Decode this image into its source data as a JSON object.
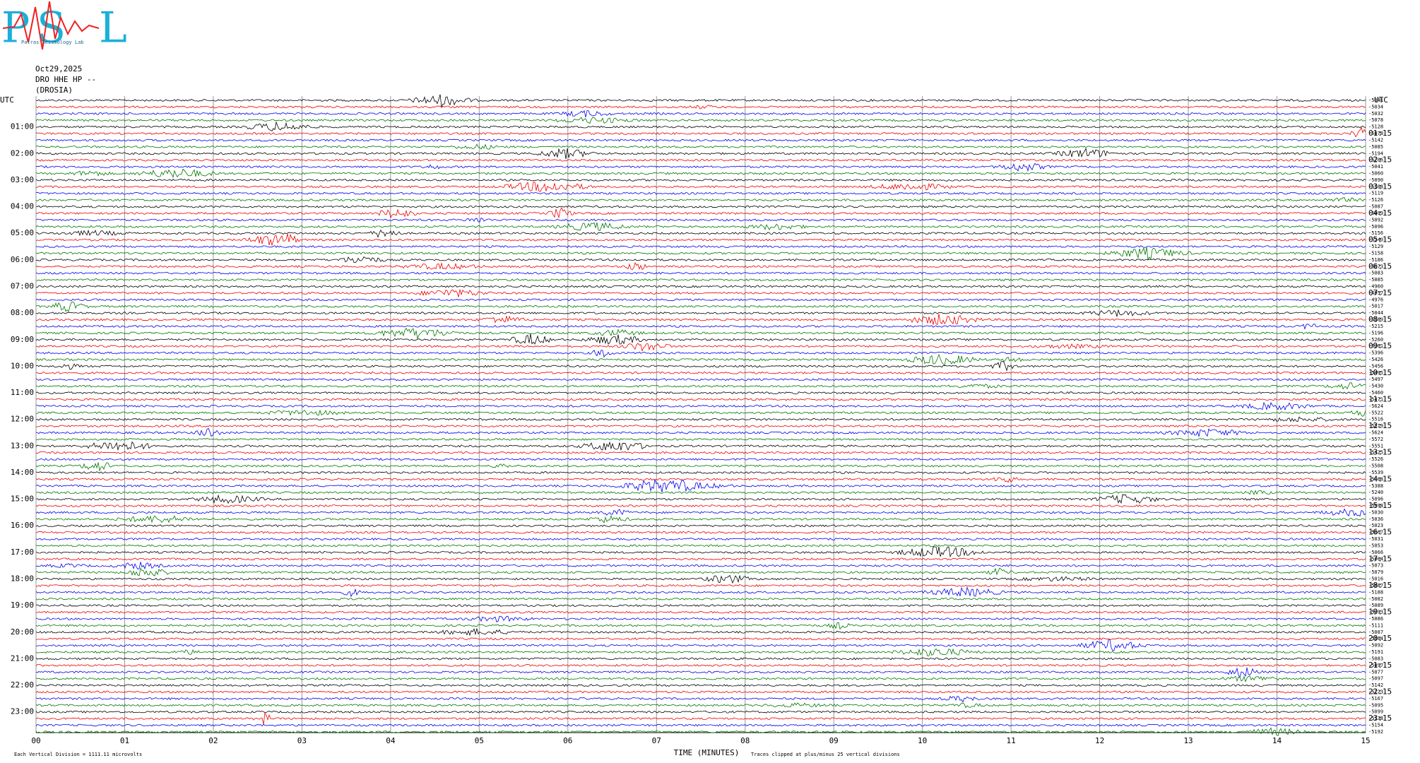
{
  "logo": {
    "letters": [
      "P",
      "S",
      "L"
    ],
    "subtitle": "Patras Seismology Lab"
  },
  "header": {
    "date": "Oct29,2025",
    "channel": "DRO HHE HP --",
    "station": "(DROSIA)"
  },
  "left_axis": {
    "title": "UTC",
    "labels": [
      "01:00",
      "02:00",
      "03:00",
      "04:00",
      "05:00",
      "06:00",
      "07:00",
      "08:00",
      "09:00",
      "10:00",
      "11:00",
      "12:00",
      "13:00",
      "14:00",
      "15:00",
      "16:00",
      "17:00",
      "18:00",
      "19:00",
      "20:00",
      "21:00",
      "22:00",
      "23:00"
    ]
  },
  "right_axis": {
    "title": "UTC",
    "labels": [
      "01:15",
      "02:15",
      "03:15",
      "04:15",
      "05:15",
      "06:15",
      "07:15",
      "08:15",
      "09:15",
      "10:15",
      "11:15",
      "12:15",
      "13:15",
      "14:15",
      "15:15",
      "16:15",
      "17:15",
      "18:15",
      "19:15",
      "20:15",
      "21:15",
      "22:15",
      "23:15"
    ]
  },
  "trace_offsets": [
    "-5041",
    "-5034",
    "-5032",
    "-5078",
    "-5128",
    "-5078",
    "-5142",
    "-5085",
    "-5194",
    "-5206",
    "-5041",
    "-5060",
    "-5090",
    "-5108",
    "-5119",
    "-5126",
    "-5087",
    "-5099",
    "-5092",
    "-5096",
    "-5156",
    "-5240",
    "-5129",
    "-5158",
    "-5186",
    "-5073",
    "-5083",
    "-5085",
    "-4960",
    "-4957",
    "-4976",
    "-5017",
    "-5044",
    "-5169",
    "-5215",
    "-5196",
    "-5260",
    "-5361",
    "-5396",
    "-5426",
    "-5456",
    "-5495",
    "-5497",
    "-5430",
    "-5460",
    "-5471",
    "-5624",
    "-5522",
    "-5516",
    "-5519",
    "-5624",
    "-5572",
    "-5551",
    "-5425",
    "-5526",
    "-5508",
    "-5539",
    "-5468",
    "-5388",
    "-5240",
    "-5096",
    "-5098",
    "-5030",
    "-5036",
    "-5023",
    "-5067",
    "-5031",
    "-5053",
    "-5066",
    "-5064",
    "-5073",
    "-5079",
    "-5016",
    "-5067",
    "-5188",
    "-5082",
    "-5089",
    "-5093",
    "-5086",
    "-5111",
    "-5087",
    "-5164",
    "-5092",
    "-5191",
    "-5083",
    "-5097",
    "-5077",
    "-5097",
    "-5142",
    "-5123",
    "-5167",
    "-5095",
    "-5099",
    "-5138",
    "-5154",
    "-5192"
  ],
  "x_axis": {
    "title": "TIME (MINUTES)",
    "labels": [
      "00",
      "01",
      "02",
      "03",
      "04",
      "05",
      "06",
      "07",
      "08",
      "09",
      "10",
      "11",
      "12",
      "13",
      "14",
      "15"
    ]
  },
  "footer": {
    "scale": "Each Vertical Division = 1111.11 microvolts",
    "clip": "Traces clipped at plus/minus 25 vertical divisions"
  }
}
